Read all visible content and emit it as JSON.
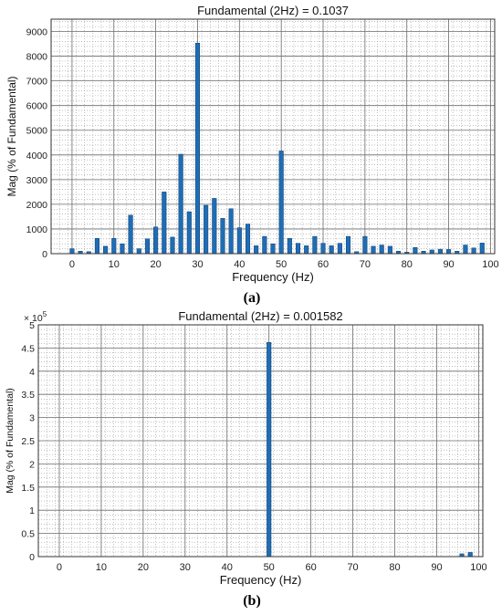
{
  "chart_data": [
    {
      "type": "bar",
      "title": "Fundamental (2Hz) = 0.1037",
      "xlabel": "Frequency (Hz)",
      "ylabel": "Mag (% of Fundamental)",
      "panel": "a",
      "xlim": [
        -5,
        101
      ],
      "ylim": [
        0,
        9500
      ],
      "xticks": [
        0,
        10,
        20,
        30,
        40,
        50,
        60,
        70,
        80,
        90,
        100
      ],
      "yticks": [
        0,
        1000,
        2000,
        3000,
        4000,
        5000,
        6000,
        7000,
        8000,
        9000
      ],
      "ytick_labels": [
        "0",
        "1000",
        "2000",
        "3000",
        "4000",
        "5000",
        "6000",
        "7000",
        "8000",
        "9000"
      ],
      "grid": "major and minor",
      "color": "#1f6db5",
      "x": [
        0,
        2,
        4,
        6,
        8,
        10,
        12,
        14,
        16,
        18,
        20,
        22,
        24,
        26,
        28,
        30,
        32,
        34,
        36,
        38,
        40,
        42,
        44,
        46,
        48,
        50,
        52,
        54,
        56,
        58,
        60,
        62,
        64,
        66,
        68,
        70,
        72,
        74,
        76,
        78,
        80,
        82,
        84,
        86,
        88,
        90,
        92,
        94,
        96,
        98
      ],
      "values": [
        200,
        100,
        80,
        620,
        300,
        620,
        400,
        1560,
        200,
        600,
        1080,
        2500,
        670,
        4030,
        1700,
        8530,
        1960,
        2240,
        1430,
        1820,
        1050,
        1200,
        320,
        700,
        400,
        4160,
        620,
        420,
        320,
        700,
        420,
        320,
        420,
        700,
        80,
        700,
        300,
        350,
        300,
        100,
        60,
        250,
        100,
        150,
        180,
        170,
        100,
        350,
        230,
        430
      ]
    },
    {
      "type": "bar",
      "title": "Fundamental (2Hz) = 0.001582",
      "xlabel": "Frequency (Hz)",
      "ylabel": "Mag (% of Fundamental)",
      "panel": "b",
      "xlim": [
        -5,
        101
      ],
      "ylim": [
        0,
        500000
      ],
      "y_exponent": "5",
      "y_multiplier_base": "× 10",
      "xticks": [
        0,
        10,
        20,
        30,
        40,
        50,
        60,
        70,
        80,
        90,
        100
      ],
      "yticks": [
        0,
        50000,
        100000,
        150000,
        200000,
        250000,
        300000,
        350000,
        400000,
        450000,
        500000
      ],
      "ytick_labels": [
        "0",
        "0.5",
        "1",
        "1.5",
        "2",
        "2.5",
        "3",
        "3.5",
        "4",
        "4.5",
        "5"
      ],
      "grid": "major and minor",
      "color": "#1f6db5",
      "x": [
        0,
        2,
        4,
        6,
        8,
        10,
        12,
        14,
        16,
        18,
        20,
        22,
        24,
        26,
        28,
        30,
        32,
        34,
        36,
        38,
        40,
        42,
        44,
        46,
        48,
        50,
        52,
        54,
        56,
        58,
        60,
        62,
        64,
        66,
        68,
        70,
        72,
        74,
        76,
        78,
        80,
        82,
        84,
        86,
        88,
        90,
        92,
        94,
        96,
        98
      ],
      "values": [
        0,
        0,
        0,
        0,
        0,
        0,
        0,
        0,
        0,
        0,
        0,
        0,
        0,
        0,
        0,
        0,
        0,
        0,
        0,
        0,
        0,
        0,
        0,
        0,
        0,
        462000,
        0,
        0,
        0,
        0,
        0,
        0,
        0,
        0,
        0,
        0,
        0,
        0,
        0,
        0,
        0,
        0,
        0,
        0,
        0,
        0,
        0,
        0,
        6000,
        9000
      ]
    }
  ],
  "captions": {
    "a": "(a)",
    "b": "(b)"
  }
}
